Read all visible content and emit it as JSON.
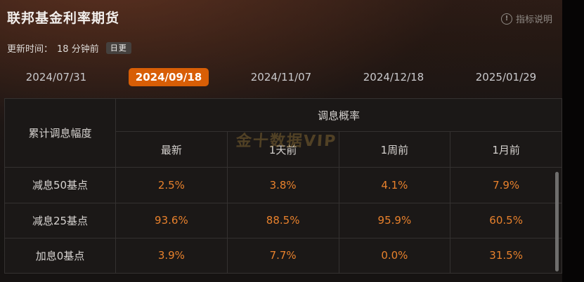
{
  "header": {
    "title": "联邦基金利率期货",
    "info_label": "指标说明",
    "info_icon_glyph": "!",
    "update_label": "更新时间：",
    "update_value": "18 分钟前",
    "update_badge": "日更"
  },
  "tabs": {
    "selected_label": "2024/09/18",
    "items": [
      {
        "label": "2024/07/31",
        "selected": false
      },
      {
        "label": "2024/09/18",
        "selected": true
      },
      {
        "label": "2024/11/07",
        "selected": false
      },
      {
        "label": "2024/12/18",
        "selected": false
      },
      {
        "label": "2025/01/29",
        "selected": false
      }
    ]
  },
  "table": {
    "row_header": "累计调息幅度",
    "group_header": "调息概率",
    "col_headers": [
      "最新",
      "1天前",
      "1周前",
      "1月前"
    ],
    "rows": [
      {
        "label": "减息50基点",
        "values": [
          "2.5%",
          "3.8%",
          "4.1%",
          "7.9%"
        ]
      },
      {
        "label": "减息25基点",
        "values": [
          "93.6%",
          "88.5%",
          "95.9%",
          "60.5%"
        ]
      },
      {
        "label": "加息0基点",
        "values": [
          "3.9%",
          "7.7%",
          "0.0%",
          "31.5%"
        ]
      }
    ]
  },
  "watermark": "金十数据VIP",
  "colors": {
    "accent_orange": "#d85e06",
    "value_orange": "#e8812c",
    "badge_bg": "#45413e",
    "muted_text": "#8f8a85",
    "table_border": "#343130"
  }
}
